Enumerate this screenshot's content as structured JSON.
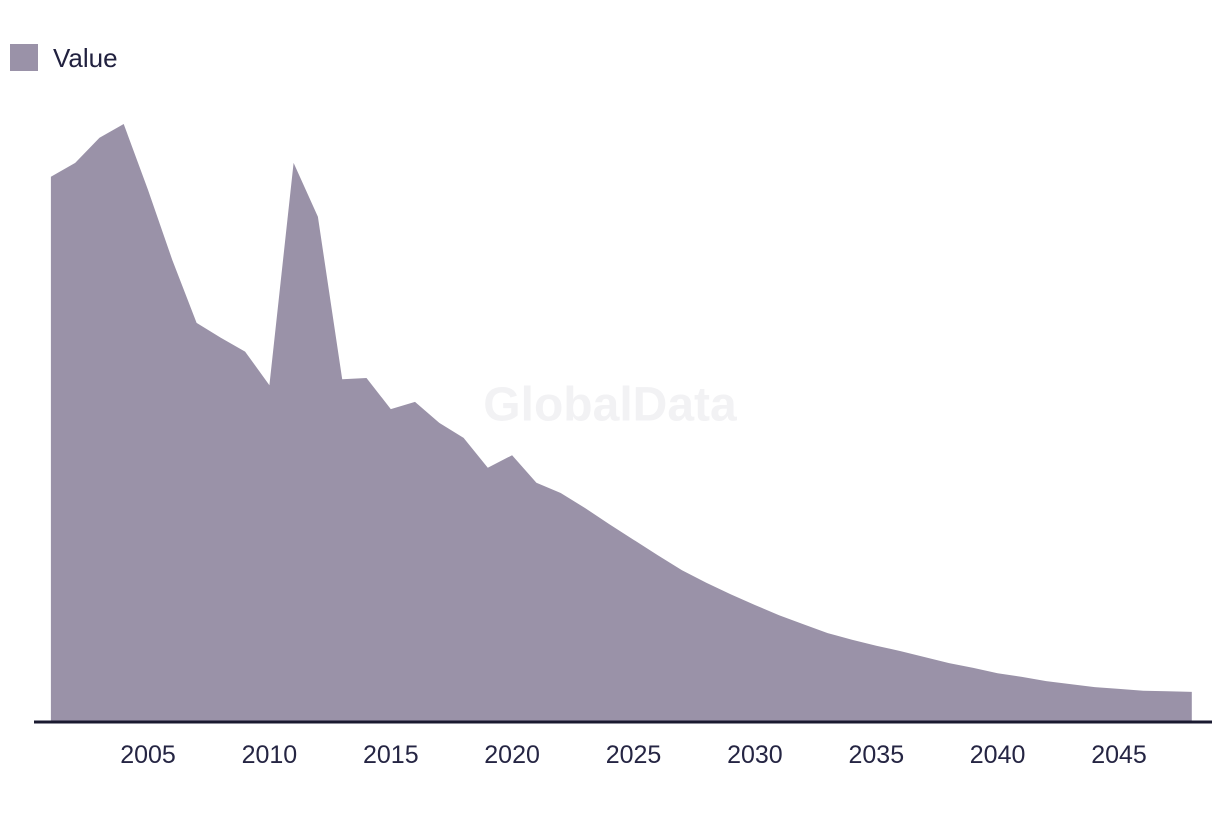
{
  "legend": {
    "items": [
      {
        "label": "Value",
        "swatch_color": "#9a92a8"
      }
    ]
  },
  "watermark": {
    "text": "GlobalData"
  },
  "chart_data": {
    "type": "area",
    "title": "",
    "xlabel": "",
    "ylabel": "",
    "x": [
      2001,
      2002,
      2003,
      2004,
      2005,
      2006,
      2007,
      2008,
      2009,
      2010,
      2011,
      2012,
      2013,
      2014,
      2015,
      2016,
      2017,
      2018,
      2019,
      2020,
      2021,
      2022,
      2023,
      2024,
      2025,
      2026,
      2027,
      2028,
      2029,
      2030,
      2031,
      2032,
      2033,
      2034,
      2035,
      2036,
      2037,
      2038,
      2039,
      2040,
      2041,
      2042,
      2043,
      2044,
      2045,
      2046,
      2047,
      2048
    ],
    "series": [
      {
        "name": "Value",
        "color": "#9a92a8",
        "values": [
          91.2,
          93.5,
          97.7,
          100.0,
          89.0,
          77.3,
          66.8,
          64.3,
          62.0,
          56.4,
          93.5,
          84.5,
          57.4,
          57.6,
          52.4,
          53.6,
          50.1,
          47.6,
          42.6,
          44.7,
          40.1,
          38.4,
          35.9,
          33.2,
          30.6,
          28.0,
          25.5,
          23.4,
          21.5,
          19.7,
          18.0,
          16.5,
          15.0,
          13.9,
          12.9,
          12.0,
          11.0,
          10.0,
          9.2,
          8.3,
          7.7,
          7.0,
          6.5,
          6.0,
          5.7,
          5.4,
          5.3,
          5.2
        ]
      }
    ],
    "x_ticks": [
      2005,
      2010,
      2015,
      2020,
      2025,
      2030,
      2035,
      2040,
      2045
    ],
    "xlim": [
      2001,
      2048
    ],
    "ylim": [
      0,
      110
    ],
    "y_axis_visible": false,
    "grid": false,
    "legend_position": "top-left",
    "background": "#ffffff",
    "axis_line_color": "#1a1a30",
    "tick_label_color": "#252543",
    "watermark_color": "#f2f2f4"
  }
}
